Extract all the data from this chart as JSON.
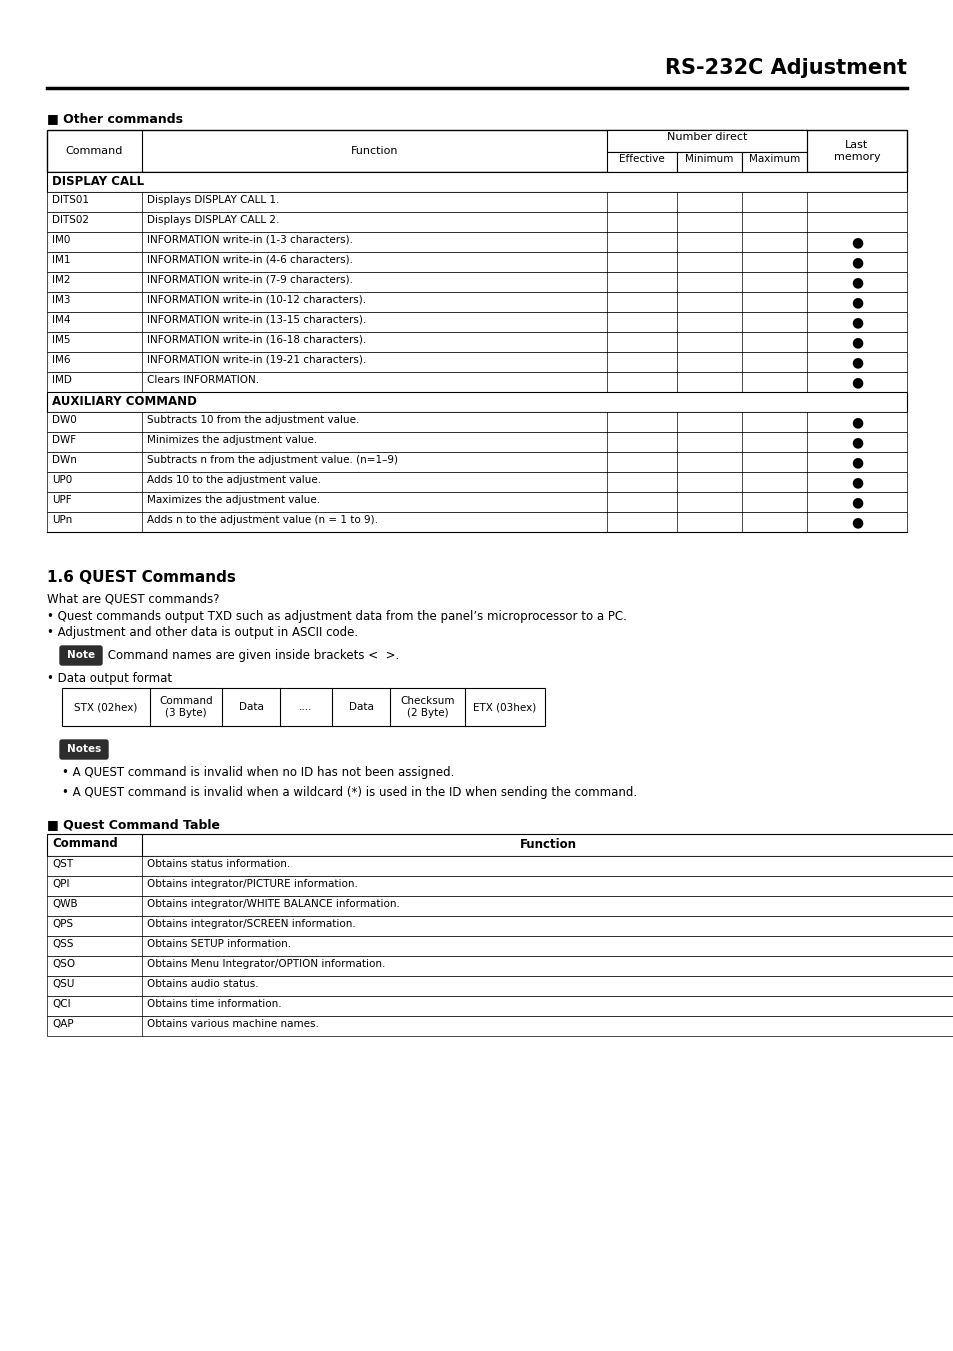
{
  "page_title": "RS-232C Adjustment",
  "section1_title": "■ Other commands",
  "table1_rows_display": [
    [
      "DITS01",
      "Displays DISPLAY CALL 1.",
      false
    ],
    [
      "DITS02",
      "Displays DISPLAY CALL 2.",
      false
    ],
    [
      "IM0",
      "INFORMATION write-in (1-3 characters).",
      true
    ],
    [
      "IM1",
      "INFORMATION write-in (4-6 characters).",
      true
    ],
    [
      "IM2",
      "INFORMATION write-in (7-9 characters).",
      true
    ],
    [
      "IM3",
      "INFORMATION write-in (10-12 characters).",
      true
    ],
    [
      "IM4",
      "INFORMATION write-in (13-15 characters).",
      true
    ],
    [
      "IM5",
      "INFORMATION write-in (16-18 characters).",
      true
    ],
    [
      "IM6",
      "INFORMATION write-in (19-21 characters).",
      true
    ],
    [
      "IMD",
      "Clears INFORMATION.",
      true
    ]
  ],
  "table1_rows_aux": [
    [
      "DW0",
      "Subtracts 10 from the adjustment value.",
      true
    ],
    [
      "DWF",
      "Minimizes the adjustment value.",
      true
    ],
    [
      "DWn",
      "Subtracts n from the adjustment value. (n=1–9)",
      true
    ],
    [
      "UP0",
      "Adds 10 to the adjustment value.",
      true
    ],
    [
      "UPF",
      "Maximizes the adjustment value.",
      true
    ],
    [
      "UPn",
      "Adds n to the adjustment value (n = 1 to 9).",
      true
    ]
  ],
  "section2_title": "1.6 QUEST Commands",
  "quest_intro": "What are QUEST commands?",
  "quest_bullet1": "Quest commands output TXD such as adjustment data from the panel’s microprocessor to a PC.",
  "quest_bullet2": "Adjustment and other data is output in ASCII code.",
  "note_label": "Note",
  "note_text": " Command names are given inside brackets <  >.",
  "data_format_label": "• Data output format",
  "data_format_cells": [
    "STX (02hex)",
    "Command\n(3 Byte)",
    "Data",
    "....",
    "Data",
    "Checksum\n(2 Byte)",
    "ETX (03hex)"
  ],
  "data_format_widths": [
    88,
    72,
    58,
    52,
    58,
    75,
    80
  ],
  "notes_label": "Notes",
  "notes_bullet1": "A QUEST command is invalid when no ID has not been assigned.",
  "notes_bullet2": "A QUEST command is invalid when a wildcard (*) is used in the ID when sending the command.",
  "section3_title": "■ Quest Command Table",
  "table2_rows": [
    [
      "QST",
      "Obtains status information."
    ],
    [
      "QPI",
      "Obtains integrator/PICTURE information."
    ],
    [
      "QWB",
      "Obtains integrator/WHITE BALANCE information."
    ],
    [
      "QPS",
      "Obtains integrator/SCREEN information."
    ],
    [
      "QSS",
      "Obtains SETUP information."
    ],
    [
      "QSO",
      "Obtains Menu Integrator/OPTION information."
    ],
    [
      "QSU",
      "Obtains audio status."
    ],
    [
      "QCI",
      "Obtains time information."
    ],
    [
      "QAP",
      "Obtains various machine names."
    ]
  ]
}
